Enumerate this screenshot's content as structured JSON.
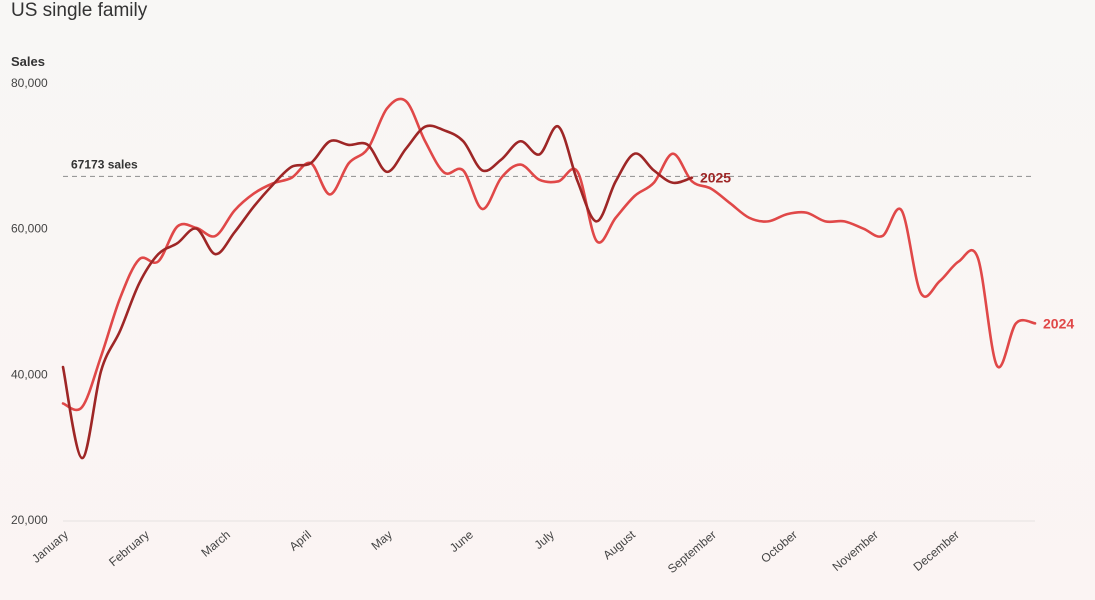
{
  "title": "US single family",
  "chart_data": {
    "type": "line",
    "title": "US single family",
    "ylabel": "Sales",
    "xlabel": "",
    "ylim": [
      20000,
      80000
    ],
    "yticks": [
      20000,
      40000,
      60000,
      80000
    ],
    "ytick_labels": [
      "20,000",
      "40,000",
      "60,000",
      "80,000"
    ],
    "months": [
      "January",
      "February",
      "March",
      "April",
      "May",
      "June",
      "July",
      "August",
      "September",
      "October",
      "November",
      "December"
    ],
    "grid": false,
    "reference_line": {
      "value": 67173,
      "label": "67173 sales",
      "style": "dashed"
    },
    "series": [
      {
        "name": "2024",
        "color": "#e04848",
        "values": [
          36000,
          35500,
          42500,
          50500,
          55800,
          55500,
          60300,
          60100,
          59000,
          62500,
          64800,
          66200,
          67000,
          69000,
          64700,
          69000,
          71000,
          76500,
          77500,
          72000,
          67700,
          68000,
          62700,
          67000,
          68800,
          66700,
          66500,
          67800,
          58300,
          61500,
          64500,
          66300,
          70300,
          66500,
          65500,
          63500,
          61500,
          61000,
          62000,
          62200,
          61000,
          61000,
          60000,
          59000,
          62500,
          51200,
          52800,
          55500,
          56000,
          41200,
          47000,
          47000
        ]
      },
      {
        "name": "2025",
        "color": "#9e2626",
        "values": [
          41000,
          28500,
          40500,
          46000,
          52500,
          56500,
          58000,
          60000,
          56500,
          59500,
          63000,
          66000,
          68500,
          69000,
          72000,
          71500,
          71500,
          67800,
          71000,
          74000,
          73500,
          72000,
          68000,
          69500,
          72000,
          70200,
          74000,
          66500,
          61000,
          66500,
          70300,
          68000,
          66300,
          67000
        ]
      }
    ]
  }
}
